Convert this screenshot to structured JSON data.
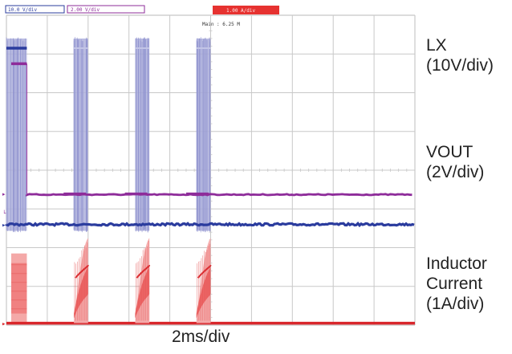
{
  "header": {
    "ch1_scale": "10.0 V/div",
    "ch2_scale": "2.00 V/div",
    "ch3_scale": "1.00 A/div",
    "main_timebase": "Main : 6.25 M"
  },
  "labels": {
    "lx": [
      "LX",
      "(10V/div)"
    ],
    "vout": [
      "VOUT",
      "(2V/div)"
    ],
    "il": [
      "Inductor",
      "Current",
      "(1A/div)"
    ],
    "timebase": "2ms/div"
  },
  "colors": {
    "lx": "#2b3c9e",
    "lx_fill": "#aeb0dc",
    "vout": "#8e2c9a",
    "il": "#d9262b",
    "il_light": "#f4a9a8",
    "il_mid": "#ec6868",
    "grid": "#c8c8c8",
    "header_bar": "#e63230"
  },
  "chart_data": {
    "type": "line",
    "title": "",
    "x_unit": "ms",
    "x_per_div": 2,
    "x_divisions": 10,
    "y_divisions": 8,
    "grid": true,
    "series": [
      {
        "name": "LX",
        "per_div": 10,
        "unit": "V",
        "ground_div": 5.4,
        "active_level_div": 0.85,
        "active_spans_ms": [
          [
            0,
            1.0
          ],
          [
            3.3,
            4.0
          ],
          [
            6.3,
            7.0
          ],
          [
            9.3,
            10.0
          ]
        ]
      },
      {
        "name": "VOUT",
        "per_div": 2,
        "unit": "V",
        "ground_div": 4.6,
        "points": [
          [
            0,
            1.25
          ],
          [
            1.0,
            1.25
          ],
          [
            1.0,
            0.05
          ],
          [
            20,
            0.05
          ]
        ],
        "bumps_ms": [
          6.7,
          12.7,
          18.7
        ]
      },
      {
        "name": "Inductor Current",
        "per_div": 1,
        "unit": "A",
        "ground_div": 7.95,
        "initial_span_ms": [
          0,
          1.0
        ],
        "initial_level_div": 1.8,
        "burst_spans_ms": [
          [
            3.3,
            4.0
          ],
          [
            6.3,
            7.0
          ],
          [
            9.3,
            10.0
          ]
        ],
        "burst_peak_div": 2.2
      }
    ]
  }
}
